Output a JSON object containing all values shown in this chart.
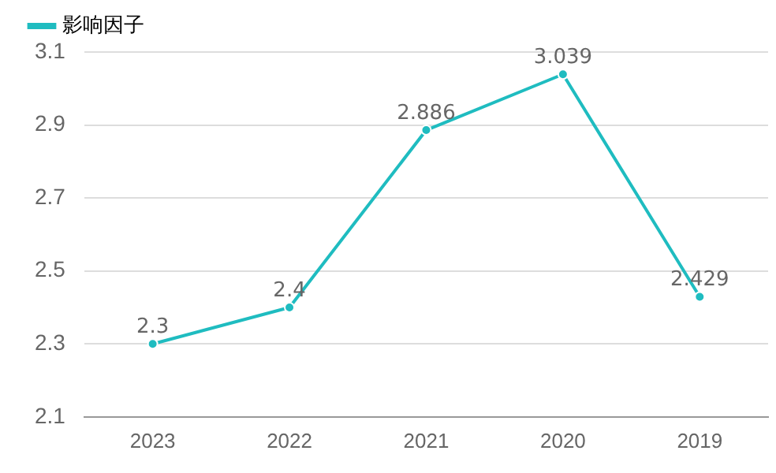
{
  "chart_data": {
    "type": "line",
    "categories": [
      "2023",
      "2022",
      "2021",
      "2020",
      "2019"
    ],
    "series": [
      {
        "name": "影响因子",
        "color": "#1fbcc0",
        "values": [
          2.3,
          2.4,
          2.886,
          3.039,
          2.429
        ]
      }
    ],
    "ylim": [
      2.1,
      3.1
    ],
    "yticks": [
      2.1,
      2.3,
      2.5,
      2.7,
      2.9,
      3.1
    ],
    "grid": "y",
    "legend": "top left",
    "marker": "circle",
    "data_labels": true
  }
}
